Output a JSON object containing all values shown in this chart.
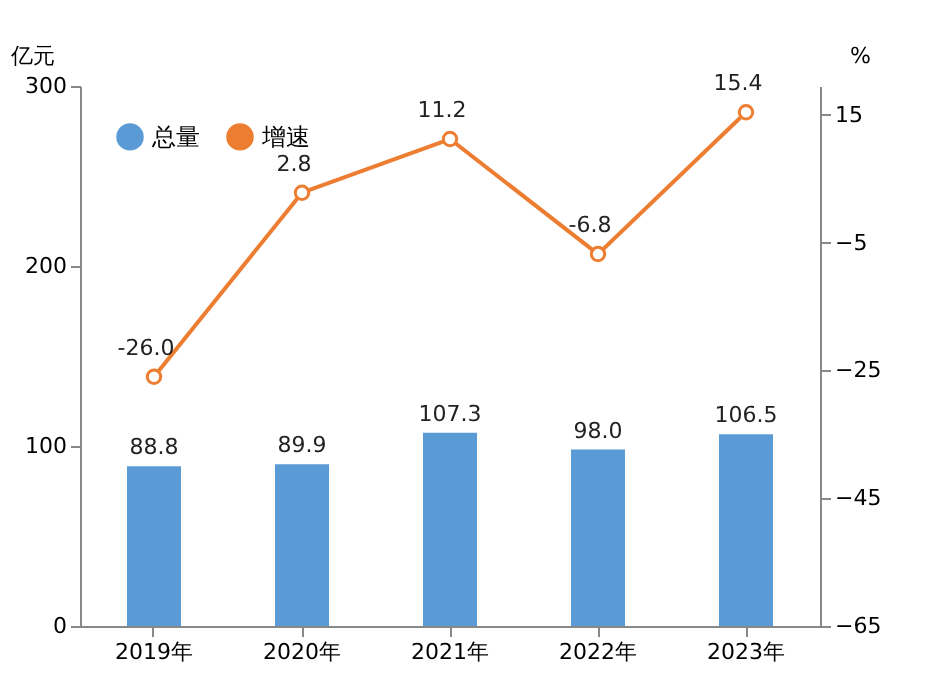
{
  "chart_data": {
    "type": "bar",
    "categories": [
      "2019年",
      "2020年",
      "2021年",
      "2022年",
      "2023年"
    ],
    "ylabel": "亿元",
    "y2label": "%",
    "ylim": [
      0,
      300
    ],
    "yticks": [
      0,
      100,
      200,
      300
    ],
    "y2lim": [
      -65,
      19.5
    ],
    "y2ticks": [
      -65,
      -45,
      -25,
      -5,
      15
    ],
    "series": [
      {
        "name": "总量",
        "color": "#5b9bd5",
        "values": [
          88.8,
          89.9,
          107.3,
          98.0,
          106.5
        ],
        "value_labels": [
          "88.8",
          "89.9",
          "107.3",
          "98.0",
          "106.5"
        ]
      },
      {
        "name": "增速",
        "type": "line",
        "axis": "y2",
        "color": "#ed7d31",
        "values": [
          -26.0,
          2.8,
          11.2,
          -6.8,
          15.4
        ],
        "value_labels": [
          "-26.0",
          "2.8",
          "11.2",
          "-6.8",
          "15.4"
        ]
      }
    ],
    "legend": "top left",
    "grid": false,
    "marker": "circle",
    "line_style": "solid"
  }
}
